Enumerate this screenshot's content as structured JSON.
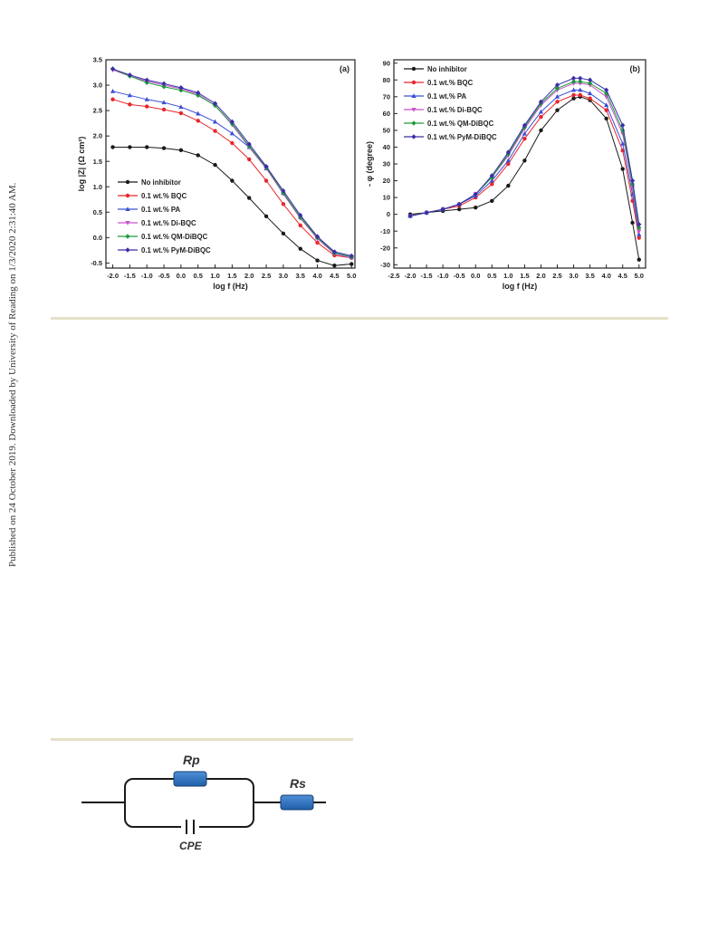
{
  "side_note": "Published on 24 October 2019. Downloaded by University of Reading on 1/3/2020 2:31:40 AM.",
  "legend_labels": [
    "No inhibitor",
    "0.1 wt.% BQC",
    "0.1 wt.% PA",
    "0.1 wt.% Di-BQC",
    "0.1 wt.% QM-DiBQC",
    "0.1 wt.% PyM-DiBQC"
  ],
  "colors": [
    "#1a1a1a",
    "#e8262b",
    "#3b4fd6",
    "#c955c9",
    "#1e9a3a",
    "#3a2fa8"
  ],
  "chart_data": [
    {
      "type": "line",
      "panel_label": "(a)",
      "xlabel": "log f (Hz)",
      "ylabel": "log |Z| (Ω cm²)",
      "xlim": [
        -2.2,
        5.1
      ],
      "ylim": [
        -0.6,
        3.5
      ],
      "xticks": [
        "-2.0",
        "-1.5",
        "-1.0",
        "-0.5",
        "0.0",
        "0.5",
        "1.0",
        "1.5",
        "2.0",
        "2.5",
        "3.0",
        "3.5",
        "4.0",
        "4.5",
        "5.0"
      ],
      "yticks": [
        "-0.5",
        "0.0",
        "0.5",
        "1.0",
        "1.5",
        "2.0",
        "2.5",
        "3.0",
        "3.5"
      ],
      "legend_position": "bottom-left",
      "x": [
        -2.0,
        -1.5,
        -1.0,
        -0.5,
        0.0,
        0.5,
        1.0,
        1.5,
        2.0,
        2.5,
        3.0,
        3.5,
        4.0,
        4.5,
        5.0
      ],
      "series": [
        {
          "name": "No inhibitor",
          "values": [
            1.78,
            1.78,
            1.78,
            1.76,
            1.72,
            1.62,
            1.43,
            1.12,
            0.78,
            0.42,
            0.08,
            -0.22,
            -0.45,
            -0.55,
            -0.52
          ]
        },
        {
          "name": "0.1 wt.% BQC",
          "values": [
            2.72,
            2.62,
            2.58,
            2.52,
            2.45,
            2.3,
            2.1,
            1.86,
            1.54,
            1.12,
            0.66,
            0.24,
            -0.1,
            -0.35,
            -0.4
          ]
        },
        {
          "name": "0.1 wt.% PA",
          "values": [
            2.88,
            2.8,
            2.72,
            2.66,
            2.57,
            2.44,
            2.28,
            2.05,
            1.78,
            1.36,
            0.88,
            0.4,
            0.0,
            -0.3,
            -0.38
          ]
        },
        {
          "name": "0.1 wt.% Di-BQC",
          "values": [
            3.3,
            3.18,
            3.08,
            3.0,
            2.93,
            2.82,
            2.6,
            2.22,
            1.78,
            1.36,
            0.86,
            0.38,
            -0.02,
            -0.32,
            -0.4
          ]
        },
        {
          "name": "0.1 wt.% QM-DiBQC",
          "values": [
            3.32,
            3.18,
            3.05,
            2.97,
            2.9,
            2.8,
            2.6,
            2.24,
            1.8,
            1.38,
            0.88,
            0.4,
            0.0,
            -0.3,
            -0.38
          ]
        },
        {
          "name": "0.1 wt.% PyM-DiBQC",
          "values": [
            3.32,
            3.2,
            3.1,
            3.03,
            2.95,
            2.85,
            2.64,
            2.28,
            1.84,
            1.4,
            0.92,
            0.44,
            0.02,
            -0.28,
            -0.36
          ]
        }
      ]
    },
    {
      "type": "line",
      "panel_label": "(b)",
      "xlabel": "log f (Hz)",
      "ylabel": "- φ (degree)",
      "xlim": [
        -2.5,
        5.2
      ],
      "ylim": [
        -32,
        92
      ],
      "xticks": [
        "-2.5",
        "-2.0",
        "-1.5",
        "-1.0",
        "-0.5",
        "0.0",
        "0.5",
        "1.0",
        "1.5",
        "2.0",
        "2.5",
        "3.0",
        "3.5",
        "4.0",
        "4.5",
        "5.0"
      ],
      "yticks": [
        "-30",
        "-20",
        "-10",
        "0",
        "10",
        "20",
        "30",
        "40",
        "50",
        "60",
        "70",
        "80",
        "90"
      ],
      "legend_position": "top-left",
      "x": [
        -2.0,
        -1.5,
        -1.0,
        -0.5,
        0.0,
        0.5,
        1.0,
        1.5,
        2.0,
        2.5,
        3.0,
        3.2,
        3.5,
        4.0,
        4.5,
        4.8,
        5.0
      ],
      "series": [
        {
          "name": "No inhibitor",
          "values": [
            0,
            1,
            2,
            3,
            4,
            8,
            17,
            32,
            50,
            62,
            69,
            70,
            68,
            57,
            27,
            -5,
            -27
          ]
        },
        {
          "name": "0.1 wt.% BQC",
          "values": [
            -1,
            1,
            3,
            5,
            10,
            18,
            30,
            45,
            58,
            67,
            71,
            71,
            69,
            62,
            38,
            8,
            -14
          ]
        },
        {
          "name": "0.1 wt.% PA",
          "values": [
            -1,
            1,
            3,
            6,
            11,
            20,
            32,
            48,
            61,
            70,
            74,
            74,
            72,
            65,
            42,
            12,
            -12
          ]
        },
        {
          "name": "0.1 wt.% Di-BQC",
          "values": [
            -1,
            1,
            3,
            6,
            12,
            22,
            35,
            51,
            65,
            74,
            78,
            78,
            77,
            70,
            48,
            16,
            -10
          ]
        },
        {
          "name": "0.1 wt.% QM-DiBQC",
          "values": [
            -1,
            1,
            3,
            6,
            12,
            22,
            36,
            52,
            66,
            75,
            79,
            79,
            78,
            72,
            50,
            18,
            -8
          ]
        },
        {
          "name": "0.1 wt.% PyM-DiBQC",
          "values": [
            -1,
            1,
            3,
            6,
            12,
            23,
            37,
            53,
            67,
            77,
            81,
            81,
            80,
            74,
            53,
            20,
            -6
          ]
        }
      ]
    }
  ],
  "circuit": {
    "rp_label": "Rp",
    "rs_label": "Rs",
    "cpe_label": "CPE"
  }
}
